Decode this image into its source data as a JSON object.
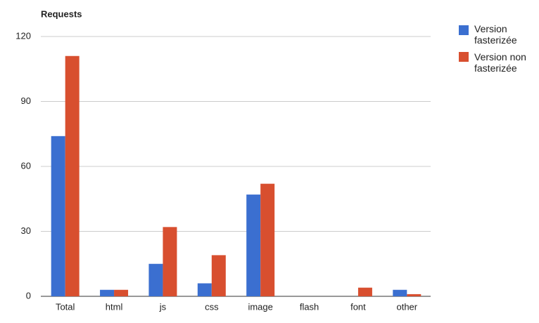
{
  "chart_data": {
    "type": "bar",
    "title": "Requests",
    "categories": [
      "Total",
      "html",
      "js",
      "css",
      "image",
      "flash",
      "font",
      "other"
    ],
    "series": [
      {
        "name": "Version fasterizée",
        "color": "#3b6fd0",
        "values": [
          74,
          3,
          15,
          6,
          47,
          0,
          0,
          3
        ]
      },
      {
        "name": "Version non fasterizée",
        "color": "#d84f2f",
        "values": [
          111,
          3,
          32,
          19,
          52,
          0,
          4,
          1
        ]
      }
    ],
    "ylim": [
      0,
      120
    ],
    "yticks": [
      0,
      30,
      60,
      90,
      120
    ],
    "grid": true
  }
}
